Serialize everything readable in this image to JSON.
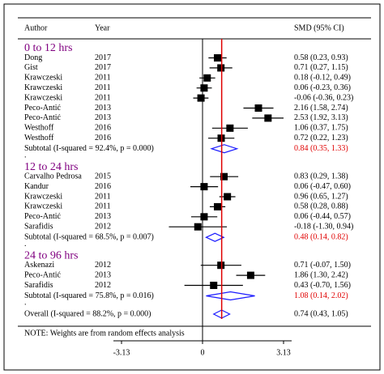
{
  "chart_data": {
    "type": "forest",
    "header": {
      "author": "Author",
      "year": "Year",
      "effect": "SMD (95% CI)"
    },
    "xlim": [
      -3.13,
      3.13
    ],
    "xticks": [
      -3.13,
      0,
      3.13
    ],
    "reference_line": 0.74,
    "reference_color": "#e00000",
    "diamond_color": "#1a1aff",
    "group_color": "#800080",
    "subtotal_color": "#e00000",
    "groups": [
      {
        "name": "0 to 12 hrs",
        "spacer": ".",
        "studies": [
          {
            "author": "Dong",
            "year": "2017",
            "effect": 0.58,
            "lower": 0.23,
            "upper": 0.93,
            "value_label": "0.58 (0.23, 0.93)"
          },
          {
            "author": "Gist",
            "year": "2017",
            "effect": 0.71,
            "lower": 0.27,
            "upper": 1.15,
            "value_label": "0.71 (0.27, 1.15)"
          },
          {
            "author": "Krawczeski",
            "year": "2011",
            "effect": 0.18,
            "lower": -0.12,
            "upper": 0.49,
            "value_label": "0.18 (-0.12, 0.49)"
          },
          {
            "author": "Krawczeski",
            "year": "2011",
            "effect": 0.06,
            "lower": -0.23,
            "upper": 0.36,
            "value_label": "0.06 (-0.23, 0.36)"
          },
          {
            "author": "Krawczeski",
            "year": "2011",
            "effect": -0.06,
            "lower": -0.36,
            "upper": 0.23,
            "value_label": "-0.06 (-0.36, 0.23)"
          },
          {
            "author": "Peco-Antić",
            "year": "2013",
            "effect": 2.16,
            "lower": 1.58,
            "upper": 2.74,
            "value_label": "2.16 (1.58, 2.74)"
          },
          {
            "author": "Peco-Antić",
            "year": "2013",
            "effect": 2.53,
            "lower": 1.92,
            "upper": 3.13,
            "value_label": "2.53 (1.92, 3.13)"
          },
          {
            "author": "Westhoff",
            "year": "2016",
            "effect": 1.06,
            "lower": 0.37,
            "upper": 1.75,
            "value_label": "1.06 (0.37, 1.75)"
          },
          {
            "author": "Westhoff",
            "year": "2016",
            "effect": 0.72,
            "lower": 0.22,
            "upper": 1.23,
            "value_label": "0.72 (0.22, 1.23)"
          }
        ],
        "subtotal": {
          "label": "Subtotal  (I-squared = 92.4%, p = 0.000)",
          "effect": 0.84,
          "lower": 0.35,
          "upper": 1.33,
          "value_label": "0.84 (0.35, 1.33)"
        }
      },
      {
        "name": "12 to 24 hrs",
        "spacer": ".",
        "studies": [
          {
            "author": "Carvalho Pedrosa",
            "year": "2015",
            "effect": 0.83,
            "lower": 0.29,
            "upper": 1.38,
            "value_label": "0.83 (0.29, 1.38)"
          },
          {
            "author": "Kandur",
            "year": "2016",
            "effect": 0.06,
            "lower": -0.47,
            "upper": 0.6,
            "value_label": "0.06 (-0.47, 0.60)"
          },
          {
            "author": "Krawczeski",
            "year": "2011",
            "effect": 0.96,
            "lower": 0.65,
            "upper": 1.27,
            "value_label": "0.96 (0.65, 1.27)"
          },
          {
            "author": "Krawczeski",
            "year": "2011",
            "effect": 0.58,
            "lower": 0.28,
            "upper": 0.88,
            "value_label": "0.58 (0.28, 0.88)"
          },
          {
            "author": "Peco-Antić",
            "year": "2013",
            "effect": 0.06,
            "lower": -0.44,
            "upper": 0.57,
            "value_label": "0.06 (-0.44, 0.57)"
          },
          {
            "author": "Sarafidis",
            "year": "2012",
            "effect": -0.18,
            "lower": -1.3,
            "upper": 0.94,
            "value_label": "-0.18 (-1.30, 0.94)"
          }
        ],
        "subtotal": {
          "label": "Subtotal  (I-squared = 68.5%, p = 0.007)",
          "effect": 0.48,
          "lower": 0.14,
          "upper": 0.82,
          "value_label": "0.48 (0.14, 0.82)"
        }
      },
      {
        "name": "24 to 96 hrs",
        "spacer": ".",
        "studies": [
          {
            "author": "Askenazi",
            "year": "2012",
            "effect": 0.71,
            "lower": -0.07,
            "upper": 1.5,
            "value_label": "0.71 (-0.07, 1.50)"
          },
          {
            "author": "Peco-Antić",
            "year": "2013",
            "effect": 1.86,
            "lower": 1.3,
            "upper": 2.42,
            "value_label": "1.86 (1.30, 2.42)"
          },
          {
            "author": "Sarafidis",
            "year": "2012",
            "effect": 0.43,
            "lower": -0.7,
            "upper": 1.56,
            "value_label": "0.43 (-0.70, 1.56)"
          }
        ],
        "subtotal": {
          "label": "Subtotal  (I-squared = 75.8%, p = 0.016)",
          "effect": 1.08,
          "lower": 0.14,
          "upper": 2.02,
          "value_label": "1.08 (0.14, 2.02)"
        }
      }
    ],
    "overall": {
      "label": "Overall  (I-squared = 88.2%, p = 0.000)",
      "effect": 0.74,
      "lower": 0.43,
      "upper": 1.05,
      "value_label": "0.74 (0.43, 1.05)"
    },
    "note": "NOTE: Weights are from random effects analysis"
  }
}
